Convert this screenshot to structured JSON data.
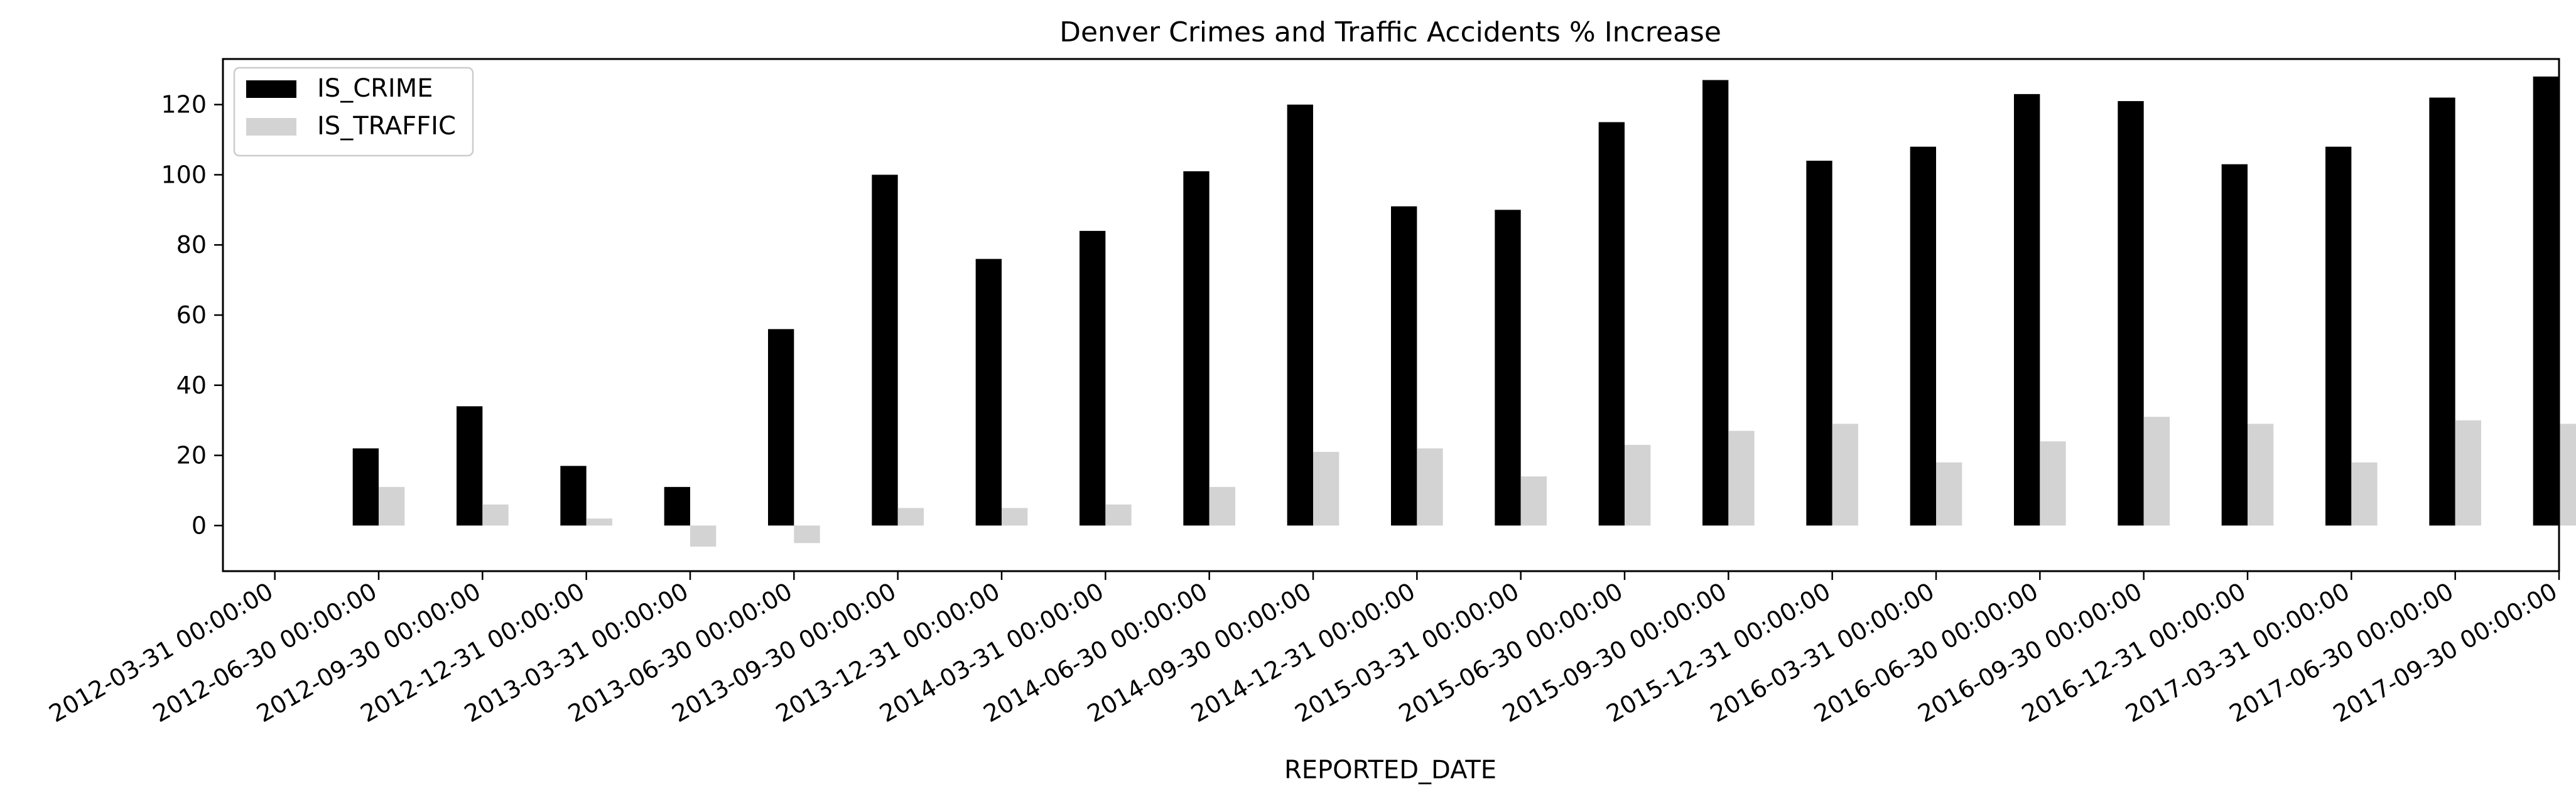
{
  "chart_data": {
    "type": "bar",
    "title": "Denver Crimes and Traffic Accidents % Increase",
    "xlabel": "REPORTED_DATE",
    "ylabel": "",
    "ylim": [
      -13,
      133
    ],
    "yticks": [
      0,
      20,
      40,
      60,
      80,
      100,
      120
    ],
    "grid": false,
    "legend_position": "top-left",
    "categories": [
      "2012-03-31 00:00:00",
      "2012-06-30 00:00:00",
      "2012-09-30 00:00:00",
      "2012-12-31 00:00:00",
      "2013-03-31 00:00:00",
      "2013-06-30 00:00:00",
      "2013-09-30 00:00:00",
      "2013-12-31 00:00:00",
      "2014-03-31 00:00:00",
      "2014-06-30 00:00:00",
      "2014-09-30 00:00:00",
      "2014-12-31 00:00:00",
      "2015-03-31 00:00:00",
      "2015-06-30 00:00:00",
      "2015-09-30 00:00:00",
      "2015-12-31 00:00:00",
      "2016-03-31 00:00:00",
      "2016-06-30 00:00:00",
      "2016-09-30 00:00:00",
      "2016-12-31 00:00:00",
      "2017-03-31 00:00:00",
      "2017-06-30 00:00:00",
      "2017-09-30 00:00:00"
    ],
    "series": [
      {
        "name": "IS_CRIME",
        "color": "#000000",
        "values": [
          null,
          22,
          34,
          17,
          11,
          56,
          100,
          76,
          84,
          101,
          120,
          91,
          90,
          115,
          127,
          104,
          108,
          123,
          121,
          103,
          108,
          122,
          128
        ]
      },
      {
        "name": "IS_TRAFFIC",
        "color": "#d3d3d3",
        "values": [
          null,
          11,
          6,
          2,
          -6,
          -5,
          5,
          5,
          6,
          11,
          21,
          22,
          14,
          23,
          27,
          29,
          18,
          24,
          31,
          29,
          18,
          30,
          29
        ]
      }
    ]
  }
}
